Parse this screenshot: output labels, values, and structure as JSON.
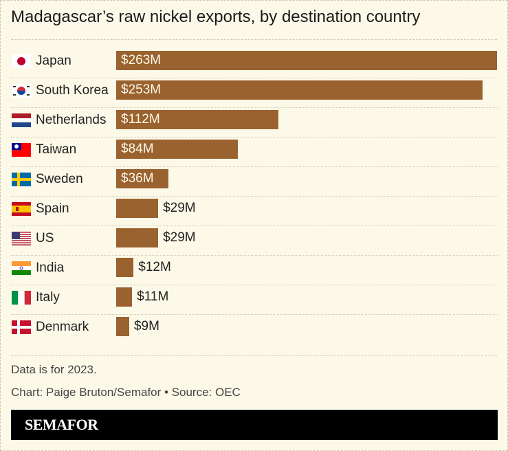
{
  "chart_data": {
    "type": "bar",
    "orientation": "horizontal",
    "title": "Madagascar’s raw nickel exports, by destination country",
    "categories": [
      "Japan",
      "South Korea",
      "Netherlands",
      "Taiwan",
      "Sweden",
      "Spain",
      "US",
      "India",
      "Italy",
      "Denmark"
    ],
    "values": [
      263,
      253,
      112,
      84,
      36,
      29,
      29,
      12,
      11,
      9
    ],
    "labels": [
      "$263M",
      "$253M",
      "$112M",
      "$84M",
      "$36M",
      "$29M",
      "$29M",
      "$12M",
      "$11M",
      "$9M"
    ],
    "flags": [
      "japan-flag",
      "south-korea-flag",
      "netherlands-flag",
      "taiwan-flag",
      "sweden-flag",
      "spain-flag",
      "us-flag",
      "india-flag",
      "italy-flag",
      "denmark-flag"
    ],
    "unit": "USD millions",
    "bar_color": "#9a622e",
    "grid": false
  },
  "notes": {
    "data_note": "Data is for 2023.",
    "credit": "Chart: Paige Bruton/Semafor • Source: OEC"
  },
  "brand": {
    "logo_text": "SEMAFOR"
  },
  "colors": {
    "background": "#fcf9e8",
    "bar": "#9a622e",
    "brand_bar": "#000000"
  }
}
